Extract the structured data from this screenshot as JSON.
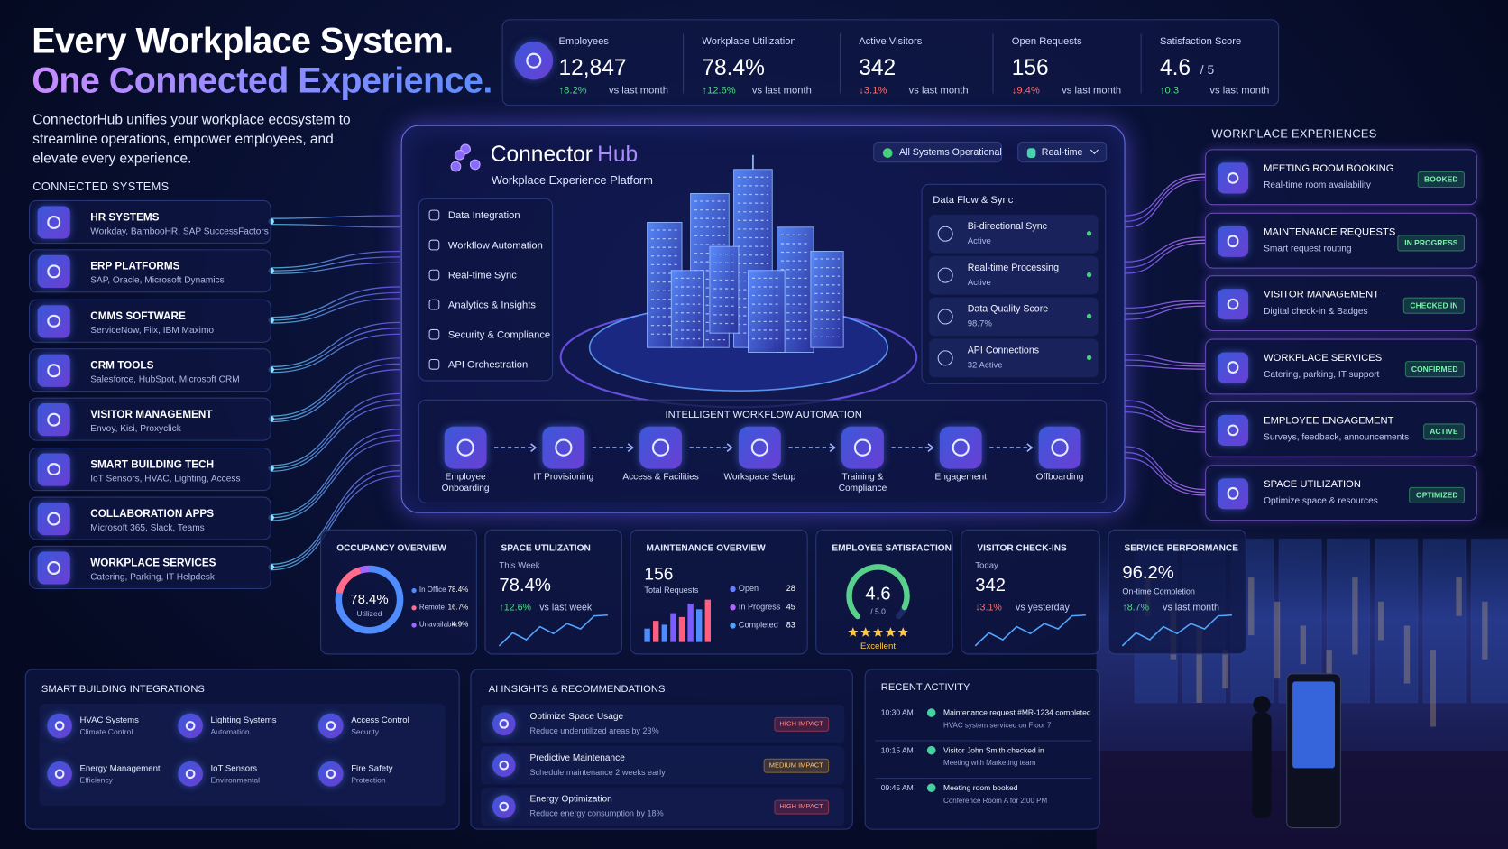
{
  "hero": {
    "title_line1": "Every Workplace System.",
    "title_line2": "One Connected Experience.",
    "description": "ConnectorHub unifies your workplace ecosystem to streamline operations, empower employees, and elevate every experience."
  },
  "connected_systems": {
    "heading": "CONNECTED SYSTEMS",
    "items": [
      {
        "title": "HR SYSTEMS",
        "subtitle": "Workday, BambooHR, SAP SuccessFactors"
      },
      {
        "title": "ERP PLATFORMS",
        "subtitle": "SAP, Oracle, Microsoft Dynamics"
      },
      {
        "title": "CMMS SOFTWARE",
        "subtitle": "ServiceNow, Fiix, IBM Maximo"
      },
      {
        "title": "CRM TOOLS",
        "subtitle": "Salesforce, HubSpot, Microsoft CRM"
      },
      {
        "title": "VISITOR MANAGEMENT",
        "subtitle": "Envoy, Kisi, Proxyclick"
      },
      {
        "title": "SMART BUILDING TECH",
        "subtitle": "IoT Sensors, HVAC, Lighting, Access"
      },
      {
        "title": "COLLABORATION APPS",
        "subtitle": "Microsoft 365, Slack, Teams"
      },
      {
        "title": "WORKPLACE SERVICES",
        "subtitle": "Catering, Parking, IT Helpdesk"
      }
    ]
  },
  "kpis": [
    {
      "label": "Employees",
      "value": "12,847",
      "change": "8.2%",
      "direction": "up",
      "note": "vs last month"
    },
    {
      "label": "Workplace Utilization",
      "value": "78.4%",
      "change": "12.6%",
      "direction": "up",
      "note": "vs last month"
    },
    {
      "label": "Active Visitors",
      "value": "342",
      "change": "3.1%",
      "direction": "down",
      "note": "vs last month"
    },
    {
      "label": "Open Requests",
      "value": "156",
      "change": "9.4%",
      "direction": "down",
      "note": "vs last month"
    },
    {
      "label": "Satisfaction Score",
      "value": "4.6",
      "suffix": "/ 5",
      "change": "0.3",
      "direction": "up",
      "note": "vs last month"
    }
  ],
  "platform": {
    "brand_a": "Connector",
    "brand_b": "Hub",
    "subtitle": "Workplace Experience Platform",
    "status": "All Systems Operational",
    "mode": "Real-time",
    "features": [
      "Data Integration",
      "Workflow Automation",
      "Real-time Sync",
      "Analytics & Insights",
      "Security & Compliance",
      "API Orchestration"
    ],
    "data_flow": {
      "heading": "Data Flow & Sync",
      "items": [
        {
          "title": "Bi-directional Sync",
          "status": "Active"
        },
        {
          "title": "Real-time Processing",
          "status": "Active"
        },
        {
          "title": "Data Quality Score",
          "status": "98.7%"
        },
        {
          "title": "API Connections",
          "status": "32 Active"
        }
      ]
    },
    "workflow": {
      "heading": "INTELLIGENT WORKFLOW AUTOMATION",
      "steps": [
        "Employee Onboarding",
        "IT Provisioning",
        "Access & Facilities",
        "Workspace Setup",
        "Training & Compliance",
        "Engagement",
        "Offboarding"
      ]
    }
  },
  "experiences": {
    "heading": "WORKPLACE EXPERIENCES",
    "items": [
      {
        "title": "MEETING ROOM BOOKING",
        "subtitle": "Real-time room availability",
        "badge": "BOOKED"
      },
      {
        "title": "MAINTENANCE REQUESTS",
        "subtitle": "Smart request routing",
        "badge": "IN PROGRESS"
      },
      {
        "title": "VISITOR MANAGEMENT",
        "subtitle": "Digital check-in & Badges",
        "badge": "CHECKED IN"
      },
      {
        "title": "WORKPLACE SERVICES",
        "subtitle": "Catering, parking, IT support",
        "badge": "CONFIRMED"
      },
      {
        "title": "EMPLOYEE ENGAGEMENT",
        "subtitle": "Surveys, feedback, announcements",
        "badge": "ACTIVE"
      },
      {
        "title": "SPACE UTILIZATION",
        "subtitle": "Optimize space & resources",
        "badge": "OPTIMIZED"
      }
    ]
  },
  "metrics": {
    "occupancy": {
      "title": "OCCUPANCY OVERVIEW",
      "center_value": "78.4%",
      "center_label": "Utilized",
      "legend": [
        {
          "label": "In Office",
          "value": 78.4,
          "value_label": "78.4%",
          "color": "#4f8dff"
        },
        {
          "label": "Remote",
          "value": 16.7,
          "value_label": "16.7%",
          "color": "#ff6b88"
        },
        {
          "label": "Unavailable",
          "value": 4.9,
          "value_label": "4.9%",
          "color": "#a066ff"
        }
      ]
    },
    "space_utilization": {
      "title": "SPACE UTILIZATION",
      "period": "This Week",
      "value": "78.4%",
      "change": "12.6%",
      "direction": "up",
      "note": "vs last week"
    },
    "maintenance": {
      "title": "MAINTENANCE OVERVIEW",
      "value": "156",
      "value_label": "Total Requests",
      "legend": [
        {
          "label": "Open",
          "value": "28",
          "color": "#6a7dff"
        },
        {
          "label": "In Progress",
          "value": "45",
          "color": "#b065ff"
        },
        {
          "label": "Completed",
          "value": "83",
          "color": "#4fa3ff"
        }
      ]
    },
    "employee_satisfaction": {
      "title": "EMPLOYEE SATISFACTION",
      "value": 4.6,
      "max": {
        "value": 5,
        "label": "/ 5.0"
      },
      "rating": "Excellent"
    },
    "visitor_checkins": {
      "title": "VISITOR CHECK-INS",
      "period": "Today",
      "value": "342",
      "change": "3.1%",
      "direction": "down",
      "note": "vs yesterday"
    },
    "service_performance": {
      "title": "SERVICE PERFORMANCE",
      "value": "96.2%",
      "value_label": "On-time Completion",
      "change": "8.7%",
      "direction": "up",
      "note": "vs last month"
    }
  },
  "smart_building": {
    "heading": "SMART BUILDING INTEGRATIONS",
    "items": [
      {
        "title": "HVAC Systems",
        "subtitle": "Climate Control"
      },
      {
        "title": "Lighting Systems",
        "subtitle": "Automation"
      },
      {
        "title": "Access Control",
        "subtitle": "Security"
      },
      {
        "title": "Energy Management",
        "subtitle": "Efficiency"
      },
      {
        "title": "IoT Sensors",
        "subtitle": "Environmental"
      },
      {
        "title": "Fire Safety",
        "subtitle": "Protection"
      }
    ]
  },
  "ai_insights": {
    "heading": "AI INSIGHTS & RECOMMENDATIONS",
    "items": [
      {
        "title": "Optimize Space Usage",
        "subtitle": "Reduce underutilized areas by 23%",
        "impact": "HIGH IMPACT",
        "level": "high"
      },
      {
        "title": "Predictive Maintenance",
        "subtitle": "Schedule maintenance 2 weeks early",
        "impact": "MEDIUM IMPACT",
        "level": "medium"
      },
      {
        "title": "Energy Optimization",
        "subtitle": "Reduce energy consumption by 18%",
        "impact": "HIGH IMPACT",
        "level": "high"
      }
    ]
  },
  "recent_activity": {
    "heading": "RECENT ACTIVITY",
    "items": [
      {
        "time": "10:30 AM",
        "title": "Maintenance request #MR-1234 completed",
        "subtitle": "HVAC system serviced on Floor 7"
      },
      {
        "time": "10:15 AM",
        "title": "Visitor John Smith checked in",
        "subtitle": "Meeting with Marketing team"
      },
      {
        "time": "09:45 AM",
        "title": "Meeting room booked",
        "subtitle": "Conference Room A for 2:00 PM"
      }
    ]
  }
}
